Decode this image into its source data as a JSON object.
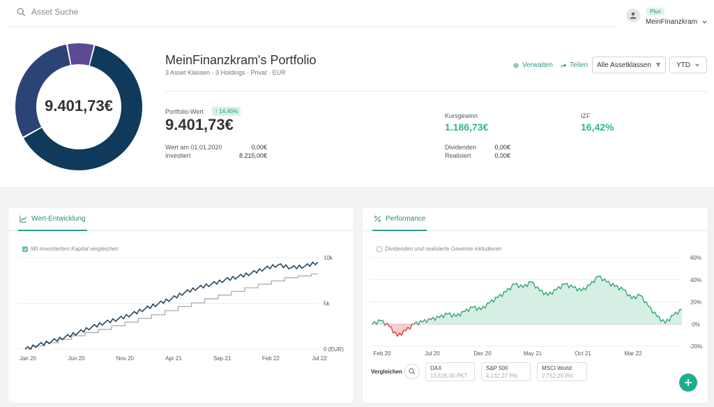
{
  "header": {
    "search_placeholder": "Asset Suche",
    "user_badge": "Plus",
    "user_name": "MeinFinanzkram"
  },
  "portfolio": {
    "donut_total": "9.401,73€",
    "donut_segments": [
      {
        "name": "segment-1",
        "fraction": 0.63,
        "color": "#0f3a5b"
      },
      {
        "name": "segment-2",
        "fraction": 0.3,
        "color": "#2c4475"
      },
      {
        "name": "segment-3",
        "fraction": 0.07,
        "color": "#5e4a94"
      }
    ],
    "title": "MeinFinanzkram's Portfolio",
    "subtitle": "3 Asset Klassen · 3 Holdings · Privat · EUR",
    "actions": {
      "manage": "Verwalten",
      "share": "Teilen",
      "filter": "Alle Assetklassen",
      "period": "YTD"
    },
    "value_label": "Portfolio-Wert",
    "value_change": "14,45%",
    "value": "9.401,73€",
    "rows": [
      {
        "label": "Wert am 01.01.2020",
        "value": "0,00€"
      },
      {
        "label": "Investiert",
        "value": "8.215,00€"
      }
    ],
    "kursgewinn_label": "Kursgewinn",
    "kursgewinn": "1.186,73€",
    "izf_label": "IZF",
    "izf": "16,42%",
    "dividends_label": "Dividenden",
    "dividends": "0,00€",
    "realized_label": "Realisiert",
    "realized": "0,00€"
  },
  "wert_card": {
    "tab": "Wert-Entwicklung",
    "option": "Mit investiertem Kapital vergleichen",
    "option_checked": true,
    "chart_data": {
      "type": "line",
      "x_ticks": [
        "Jan 20",
        "Jun 20",
        "Nov 20",
        "Apr 21",
        "Sep 21",
        "Feb 22",
        "Jul 22"
      ],
      "y_ticks": [
        "10k",
        "5k",
        "0 (EUR)"
      ],
      "ylim": [
        0,
        10000
      ],
      "series": [
        {
          "values": [
            0,
            450,
            850,
            1300,
            1800,
            2400,
            2900,
            3300,
            3800,
            4400,
            4950,
            5500,
            6200,
            6700,
            7100,
            7550,
            7900,
            8300,
            8800,
            9200,
            8900,
            9050,
            9500
          ],
          "color": "#1b3a52"
        },
        {
          "values": [
            0,
            350,
            700,
            1050,
            1450,
            1800,
            2150,
            2550,
            2950,
            3350,
            3750,
            4200,
            4650,
            5050,
            5500,
            5900,
            6300,
            6700,
            7100,
            7450,
            7800,
            8000,
            8215
          ],
          "color": "#a8acb6"
        }
      ]
    }
  },
  "perf_card": {
    "tab": "Performance",
    "option": "Dividenden und realisierte Gewinne inkludieren",
    "option_checked": false,
    "chart_data": {
      "type": "area",
      "x_ticks": [
        "Feb 20",
        "Jul 20",
        "Dec 20",
        "May 21",
        "Oct 21",
        "Mar 22"
      ],
      "y_ticks": [
        "60%",
        "40%",
        "20%",
        "0%",
        "-20%"
      ],
      "ylim": [
        -20,
        60
      ],
      "values": [
        0,
        3,
        -2,
        -11,
        -6,
        0,
        2,
        4,
        6,
        9,
        7,
        11,
        15,
        13,
        19,
        24,
        29,
        36,
        33,
        38,
        30,
        26,
        31,
        36,
        33,
        30,
        35,
        43,
        38,
        34,
        31,
        23,
        26,
        16,
        7,
        1,
        8,
        13
      ]
    },
    "compare_label": "Vergleichen",
    "compare": [
      {
        "name": "DAX",
        "value": "13.526,00 PKT"
      },
      {
        "name": "S&P 500",
        "value": "4.132,27 Pkt"
      },
      {
        "name": "MSCI World",
        "value": "2.752,25 Pkt"
      }
    ]
  }
}
